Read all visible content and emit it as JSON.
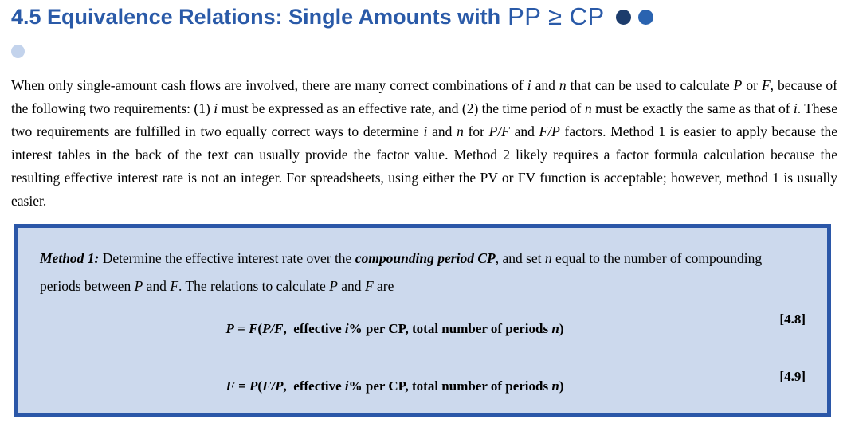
{
  "header": {
    "title_text": "4.5 Equivalence Relations: Single Amounts with",
    "title_math": "PP ≥ CP",
    "difficulty_dots": 2
  },
  "colors": {
    "title_blue": "#2a5aa8",
    "dot_dark": "#1d3c6c",
    "dot_medium": "#2a63b0",
    "dot_light": "#c3d3ec",
    "box_border": "#2b57a8",
    "box_background": "#ccd9ed"
  },
  "intro": {
    "segments": [
      {
        "t": "When only single-amount cash flows are involved, there are many correct combinations of "
      },
      {
        "t": "i",
        "s": "it"
      },
      {
        "t": " and "
      },
      {
        "t": "n",
        "s": "it"
      },
      {
        "t": " that can be used to calculate "
      },
      {
        "t": "P",
        "s": "it"
      },
      {
        "t": " or "
      },
      {
        "t": "F",
        "s": "it"
      },
      {
        "t": ", because of the following two requirements: (1) "
      },
      {
        "t": "i",
        "s": "it"
      },
      {
        "t": " must be expressed as an effective rate, and (2) the time period of "
      },
      {
        "t": "n",
        "s": "it"
      },
      {
        "t": " must be exactly the same as that of "
      },
      {
        "t": "i",
        "s": "it"
      },
      {
        "t": ". These two requirements are fulfilled in two equally correct ways to determine "
      },
      {
        "t": "i",
        "s": "it"
      },
      {
        "t": " and "
      },
      {
        "t": "n",
        "s": "it"
      },
      {
        "t": " for "
      },
      {
        "t": "P/F",
        "s": "it"
      },
      {
        "t": " and "
      },
      {
        "t": "F/P",
        "s": "it"
      },
      {
        "t": " factors. Method 1 is easier to apply because the interest tables in the back of the text can usually provide the factor value. Method 2 likely requires a factor formula calculation because the resulting effective interest rate is not an integer. For spreadsheets, using either the PV or FV function is acceptable; however, method 1 is usually easier."
      }
    ]
  },
  "method_box": {
    "segments": [
      {
        "t": "Method 1:",
        "s": "bi"
      },
      {
        "t": " Determine the effective interest rate over the "
      },
      {
        "t": "compounding period CP",
        "s": "bi"
      },
      {
        "t": ", and set "
      },
      {
        "t": "n",
        "s": "it"
      },
      {
        "t": " equal to the number of compounding periods between "
      },
      {
        "t": "P",
        "s": "it"
      },
      {
        "t": " and "
      },
      {
        "t": "F",
        "s": "it"
      },
      {
        "t": ". The relations to calculate "
      },
      {
        "t": "P",
        "s": "it"
      },
      {
        "t": " and "
      },
      {
        "t": "F",
        "s": "it"
      },
      {
        "t": " are"
      }
    ],
    "equations": [
      {
        "label": "[4.8]",
        "segments": [
          {
            "t": "P",
            "s": "bi"
          },
          {
            "t": " = ",
            "s": "b"
          },
          {
            "t": "F",
            "s": "bi"
          },
          {
            "t": "(",
            "s": "b"
          },
          {
            "t": "P/F",
            "s": "bi"
          },
          {
            "t": ", effective ",
            "s": "b"
          },
          {
            "t": "i",
            "s": "bi"
          },
          {
            "t": "% per CP, total number of periods ",
            "s": "b"
          },
          {
            "t": "n",
            "s": "bi"
          },
          {
            "t": ")",
            "s": "b"
          }
        ]
      },
      {
        "label": "[4.9]",
        "segments": [
          {
            "t": "F",
            "s": "bi"
          },
          {
            "t": " = ",
            "s": "b"
          },
          {
            "t": "P",
            "s": "bi"
          },
          {
            "t": "(",
            "s": "b"
          },
          {
            "t": "F/P",
            "s": "bi"
          },
          {
            "t": ", effective ",
            "s": "b"
          },
          {
            "t": "i",
            "s": "bi"
          },
          {
            "t": "% per CP, total number of periods ",
            "s": "b"
          },
          {
            "t": "n",
            "s": "bi"
          },
          {
            "t": ")",
            "s": "b"
          }
        ]
      }
    ]
  }
}
